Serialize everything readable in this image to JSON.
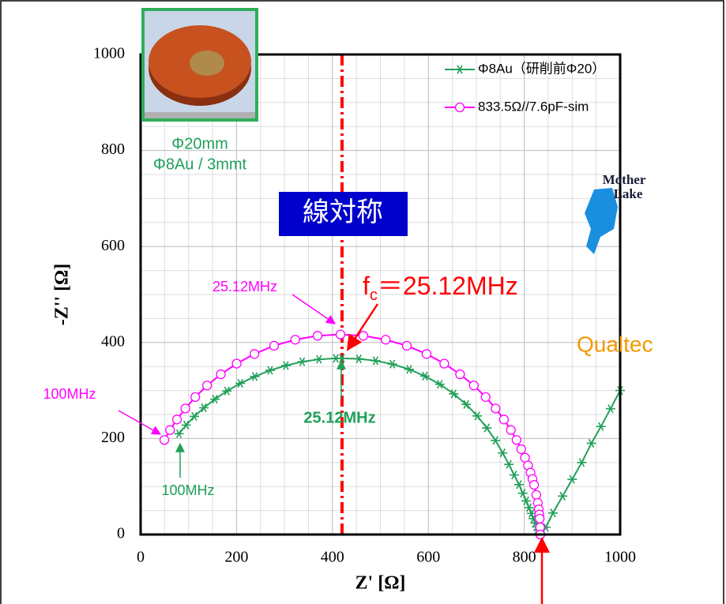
{
  "chart_data": {
    "type": "scatter",
    "x_label": "Z' [Ω]",
    "y_label": "-Z'' [Ω]",
    "xlim": [
      0,
      1000
    ],
    "ylim": [
      0,
      1000
    ],
    "xticks": [
      0,
      200,
      400,
      600,
      800,
      1000
    ],
    "yticks": [
      0,
      200,
      400,
      600,
      800,
      1000
    ],
    "grid": true,
    "legend": "upper right",
    "series": [
      {
        "name": "Φ8Au（研削前Φ20）",
        "color": "#21a05a",
        "marker": "asterisk",
        "x": [
          80,
          95,
          112,
          132,
          155,
          180,
          208,
          238,
          270,
          303,
          337,
          372,
          407,
          420,
          455,
          490,
          525,
          560,
          593,
          624,
          653,
          679,
          702,
          722,
          740,
          755,
          768,
          779,
          789,
          797,
          804,
          810,
          815,
          819,
          823,
          826,
          829,
          832,
          835,
          845,
          860,
          880,
          900,
          920,
          940,
          960,
          980,
          1000
        ],
        "values": [
          210,
          228,
          246,
          264,
          282,
          299,
          315,
          329,
          342,
          352,
          360,
          365,
          367,
          367,
          366,
          362,
          355,
          344,
          330,
          313,
          293,
          271,
          247,
          222,
          196,
          170,
          146,
          124,
          104,
          86,
          70,
          56,
          44,
          33,
          24,
          16,
          9,
          4,
          1,
          15,
          45,
          80,
          115,
          150,
          190,
          225,
          262,
          300
        ]
      },
      {
        "name": "833.5Ω//7.6pF-sim",
        "color": "#ff00ff",
        "marker": "circle",
        "x": [
          49.5,
          61.3,
          75.8,
          93.2,
          114.0,
          138.6,
          167.3,
          200.3,
          237.3,
          278.3,
          322.4,
          369.0,
          416.75,
          464.5,
          511.1,
          555.2,
          596.2,
          633.2,
          666.2,
          694.9,
          719.5,
          740.3,
          757.7,
          772.2,
          784.0,
          793.7,
          801.6,
          808.0,
          813.1,
          817.2,
          820.5,
          825.2,
          828.3,
          830.2,
          831.4,
          832.2,
          833.2,
          833.5
        ],
        "values": [
          197.0,
          217.6,
          239.6,
          262.6,
          286.4,
          310.4,
          333.8,
          356.1,
          376.1,
          393.2,
          405.9,
          414.0,
          416.75,
          414.0,
          405.9,
          393.2,
          376.1,
          356.1,
          333.8,
          310.4,
          286.4,
          262.6,
          239.6,
          217.6,
          197.0,
          177.7,
          159.9,
          143.7,
          128.9,
          115.5,
          103.3,
          82.5,
          65.8,
          52.4,
          41.7,
          33.1,
          15,
          0
        ]
      }
    ],
    "vline": 420,
    "annotations": {
      "sample_size": "Φ20mm",
      "sample_desc": "Φ8Au / 3mmt",
      "symmetry": "線対称",
      "fc_main": "f",
      "fc_sub": "c",
      "fc_value": "＝25.12MHz",
      "sim_peak": "25.12MHz",
      "meas_peak": "25.12MHz",
      "sim_high": "100MHz",
      "meas_high": "100MHz",
      "logo1_line1": "Mother",
      "logo1_line2": "Lake",
      "logo2": "Qualtec"
    }
  }
}
